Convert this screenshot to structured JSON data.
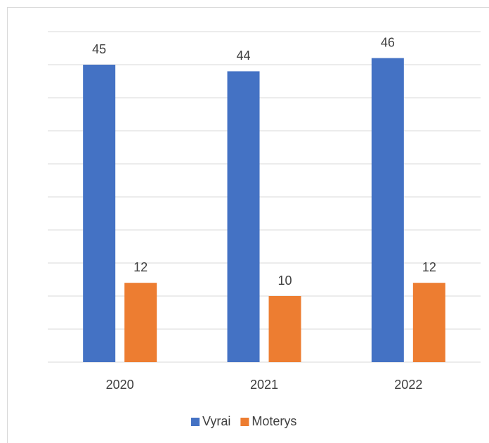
{
  "chart_data": {
    "type": "bar",
    "categories": [
      "2020",
      "2021",
      "2022"
    ],
    "series": [
      {
        "name": "Vyrai",
        "color": "#4472c4",
        "values": [
          45,
          44,
          46
        ]
      },
      {
        "name": "Moterys",
        "color": "#ed7d31",
        "values": [
          12,
          10,
          12
        ]
      }
    ],
    "ylim": [
      0,
      50
    ],
    "yticks": [
      0,
      5,
      10,
      15,
      20,
      25,
      30,
      35,
      40,
      45,
      50
    ],
    "grid": true,
    "legend": "bottom"
  }
}
